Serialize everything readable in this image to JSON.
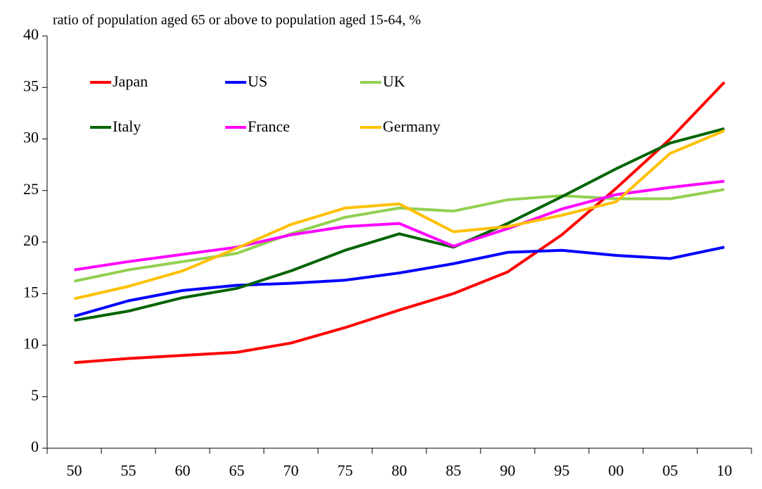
{
  "chart_data": {
    "type": "line",
    "title": "ratio of population aged 65 or above to population aged 15-64, %",
    "categories": [
      "50",
      "55",
      "60",
      "65",
      "70",
      "75",
      "80",
      "85",
      "90",
      "95",
      "00",
      "05",
      "10"
    ],
    "series": [
      {
        "name": "Japan",
        "color": "#ff0000",
        "values": [
          8.3,
          8.7,
          9.0,
          9.3,
          10.2,
          11.7,
          13.4,
          15.0,
          17.1,
          20.7,
          25.2,
          30.0,
          35.5
        ]
      },
      {
        "name": "US",
        "color": "#0000ff",
        "values": [
          12.8,
          14.3,
          15.3,
          15.8,
          16.0,
          16.3,
          17.0,
          17.9,
          19.0,
          19.2,
          18.7,
          18.4,
          19.5
        ]
      },
      {
        "name": "UK",
        "color": "#92d050",
        "values": [
          16.2,
          17.3,
          18.1,
          18.9,
          20.8,
          22.4,
          23.3,
          23.0,
          24.1,
          24.5,
          24.2,
          24.2,
          25.1
        ]
      },
      {
        "name": "Italy",
        "color": "#006400",
        "values": [
          12.4,
          13.3,
          14.6,
          15.5,
          17.2,
          19.2,
          20.8,
          19.5,
          21.8,
          24.4,
          27.1,
          29.6,
          31.0
        ]
      },
      {
        "name": "France",
        "color": "#ff00ff",
        "values": [
          17.3,
          18.1,
          18.8,
          19.5,
          20.7,
          21.5,
          21.8,
          19.6,
          21.3,
          23.2,
          24.6,
          25.3,
          25.9
        ]
      },
      {
        "name": "Germany",
        "color": "#ffc000",
        "values": [
          14.5,
          15.7,
          17.2,
          19.4,
          21.7,
          23.3,
          23.7,
          21.0,
          21.5,
          22.6,
          23.9,
          28.6,
          30.8
        ]
      }
    ],
    "ylim": [
      0,
      40
    ],
    "yticks": [
      0,
      5,
      10,
      15,
      20,
      25,
      30,
      35,
      40
    ],
    "grid": false,
    "legend": "upper-left"
  }
}
